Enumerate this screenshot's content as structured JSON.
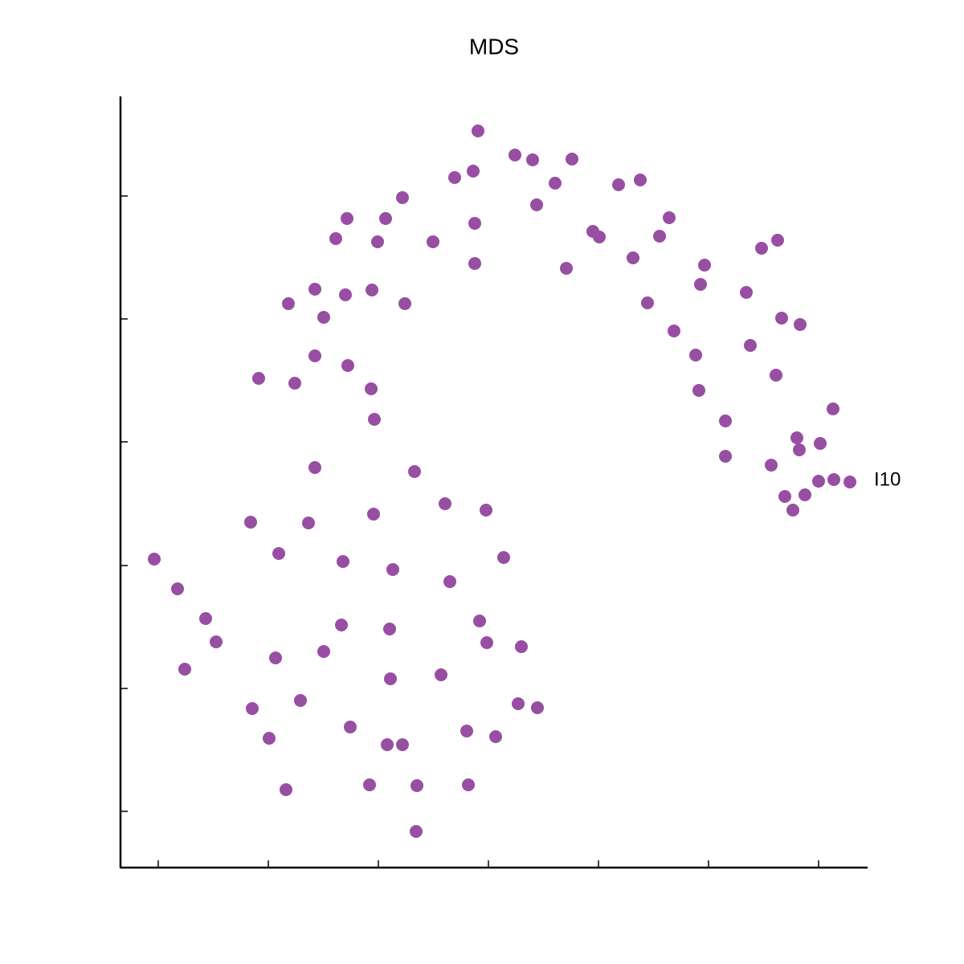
{
  "chart_data": {
    "type": "scatter",
    "title": "MDS",
    "xlim": [
      -47,
      883
    ],
    "ylim": [
      -70,
      890
    ],
    "xticks": [
      0,
      137,
      274,
      411,
      548,
      685,
      822
    ],
    "yticks": [
      0,
      153,
      306,
      460,
      613,
      766
    ],
    "series": [
      {
        "color": "#984ea3",
        "x": [
          398,
          444,
          466,
          515,
          369,
          392,
          494,
          573,
          600,
          304,
          235,
          283,
          394,
          471,
          636,
          221,
          273,
          342,
          541,
          549,
          624,
          751,
          771,
          394,
          508,
          591,
          680,
          675,
          195,
          162,
          233,
          266,
          307,
          206,
          609,
          732,
          776,
          799,
          642,
          195,
          236,
          125,
          170,
          265,
          737,
          669,
          769,
          673,
          269,
          840,
          706,
          795,
          824,
          798,
          706,
          763,
          195,
          319,
          822,
          841,
          861,
          780,
          805,
          790,
          357,
          408,
          268,
          115,
          187,
          -5,
          150,
          430,
          230,
          292,
          363,
          24,
          59,
          400,
          228,
          288,
          72,
          409,
          452,
          206,
          146,
          33,
          352,
          289,
          177,
          448,
          472,
          117,
          239,
          384,
          420,
          138,
          285,
          304,
          159,
          263,
          322,
          386,
          321
        ],
        "values": [
          847,
          817,
          811,
          812,
          789,
          797,
          782,
          780,
          786,
          764,
          738,
          738,
          732,
          755,
          739,
          713,
          709,
          709,
          722,
          715,
          716,
          701,
          711,
          682,
          676,
          689,
          680,
          656,
          650,
          632,
          643,
          649,
          632,
          615,
          633,
          646,
          614,
          606,
          598,
          567,
          555,
          539,
          533,
          526,
          580,
          568,
          543,
          524,
          488,
          501,
          486,
          465,
          458,
          450,
          442,
          431,
          428,
          423,
          411,
          413,
          410,
          392,
          394,
          375,
          383,
          375,
          370,
          360,
          359,
          314,
          321,
          316,
          311,
          301,
          286,
          277,
          240,
          237,
          232,
          227,
          211,
          210,
          205,
          199,
          191,
          177,
          170,
          165,
          138,
          134,
          129,
          128,
          105,
          100,
          93,
          91,
          83,
          83,
          27,
          33,
          32,
          33,
          -25
        ]
      }
    ],
    "annotations": [
      {
        "text": "I10",
        "x": 861,
        "y": 410
      }
    ]
  }
}
